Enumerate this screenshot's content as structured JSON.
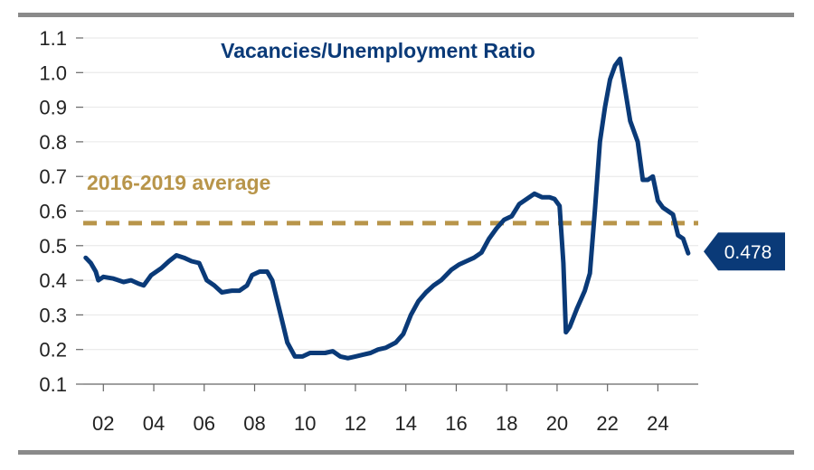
{
  "chart_data": {
    "type": "line",
    "title": "Vacancies/Unemployment Ratio",
    "xlabel": "",
    "ylabel": "",
    "xlim": [
      2001.2,
      2025.6
    ],
    "ylim": [
      0.1,
      1.1
    ],
    "yticks": [
      0.1,
      0.2,
      0.3,
      0.4,
      0.5,
      0.6,
      0.7,
      0.8,
      0.9,
      1.0,
      1.1
    ],
    "ytick_labels": [
      "0.1",
      "0.2",
      "0.3",
      "0.4",
      "0.5",
      "0.6",
      "0.7",
      "0.8",
      "0.9",
      "1.0",
      "1.1"
    ],
    "xticks": [
      2002,
      2004,
      2006,
      2008,
      2010,
      2012,
      2014,
      2016,
      2018,
      2020,
      2022,
      2024
    ],
    "xtick_labels": [
      "02",
      "04",
      "06",
      "08",
      "10",
      "12",
      "14",
      "16",
      "18",
      "20",
      "22",
      "24"
    ],
    "grid": true,
    "colors": {
      "line": "#0a3a78",
      "average": "#b8954a",
      "frame": "#8a8a8a"
    },
    "reference_line": {
      "label": "2016-2019 average",
      "value": 0.565
    },
    "callout": {
      "label": "0.478",
      "value": 0.478
    },
    "series": [
      {
        "values": [
          [
            2001.3,
            0.465
          ],
          [
            2001.5,
            0.45
          ],
          [
            2001.7,
            0.425
          ],
          [
            2001.8,
            0.4
          ],
          [
            2002.0,
            0.41
          ],
          [
            2002.4,
            0.405
          ],
          [
            2002.8,
            0.395
          ],
          [
            2003.1,
            0.4
          ],
          [
            2003.4,
            0.39
          ],
          [
            2003.6,
            0.385
          ],
          [
            2003.9,
            0.415
          ],
          [
            2004.3,
            0.435
          ],
          [
            2004.6,
            0.455
          ],
          [
            2004.9,
            0.472
          ],
          [
            2005.2,
            0.465
          ],
          [
            2005.5,
            0.455
          ],
          [
            2005.8,
            0.45
          ],
          [
            2006.1,
            0.4
          ],
          [
            2006.4,
            0.385
          ],
          [
            2006.7,
            0.365
          ],
          [
            2007.1,
            0.37
          ],
          [
            2007.4,
            0.37
          ],
          [
            2007.7,
            0.385
          ],
          [
            2007.9,
            0.415
          ],
          [
            2008.2,
            0.425
          ],
          [
            2008.5,
            0.425
          ],
          [
            2008.7,
            0.4
          ],
          [
            2008.9,
            0.34
          ],
          [
            2009.1,
            0.28
          ],
          [
            2009.3,
            0.22
          ],
          [
            2009.6,
            0.18
          ],
          [
            2009.9,
            0.18
          ],
          [
            2010.2,
            0.19
          ],
          [
            2010.5,
            0.19
          ],
          [
            2010.8,
            0.19
          ],
          [
            2011.1,
            0.195
          ],
          [
            2011.4,
            0.18
          ],
          [
            2011.7,
            0.175
          ],
          [
            2012.0,
            0.18
          ],
          [
            2012.3,
            0.185
          ],
          [
            2012.6,
            0.19
          ],
          [
            2012.9,
            0.2
          ],
          [
            2013.2,
            0.205
          ],
          [
            2013.6,
            0.22
          ],
          [
            2013.9,
            0.245
          ],
          [
            2014.2,
            0.3
          ],
          [
            2014.5,
            0.34
          ],
          [
            2014.8,
            0.365
          ],
          [
            2015.1,
            0.385
          ],
          [
            2015.4,
            0.4
          ],
          [
            2015.8,
            0.43
          ],
          [
            2016.1,
            0.445
          ],
          [
            2016.4,
            0.455
          ],
          [
            2016.7,
            0.465
          ],
          [
            2017.0,
            0.48
          ],
          [
            2017.3,
            0.52
          ],
          [
            2017.6,
            0.55
          ],
          [
            2017.9,
            0.575
          ],
          [
            2018.2,
            0.585
          ],
          [
            2018.5,
            0.62
          ],
          [
            2018.8,
            0.635
          ],
          [
            2019.1,
            0.65
          ],
          [
            2019.4,
            0.64
          ],
          [
            2019.7,
            0.64
          ],
          [
            2019.9,
            0.635
          ],
          [
            2020.1,
            0.615
          ],
          [
            2020.25,
            0.45
          ],
          [
            2020.35,
            0.25
          ],
          [
            2020.5,
            0.265
          ],
          [
            2020.8,
            0.32
          ],
          [
            2021.1,
            0.37
          ],
          [
            2021.3,
            0.42
          ],
          [
            2021.5,
            0.6
          ],
          [
            2021.7,
            0.8
          ],
          [
            2021.9,
            0.9
          ],
          [
            2022.1,
            0.98
          ],
          [
            2022.3,
            1.02
          ],
          [
            2022.5,
            1.04
          ],
          [
            2022.7,
            0.95
          ],
          [
            2022.9,
            0.86
          ],
          [
            2023.2,
            0.8
          ],
          [
            2023.4,
            0.69
          ],
          [
            2023.6,
            0.69
          ],
          [
            2023.8,
            0.7
          ],
          [
            2024.0,
            0.63
          ],
          [
            2024.2,
            0.61
          ],
          [
            2024.4,
            0.6
          ],
          [
            2024.6,
            0.59
          ],
          [
            2024.8,
            0.53
          ],
          [
            2025.0,
            0.52
          ],
          [
            2025.2,
            0.478
          ]
        ]
      }
    ]
  }
}
